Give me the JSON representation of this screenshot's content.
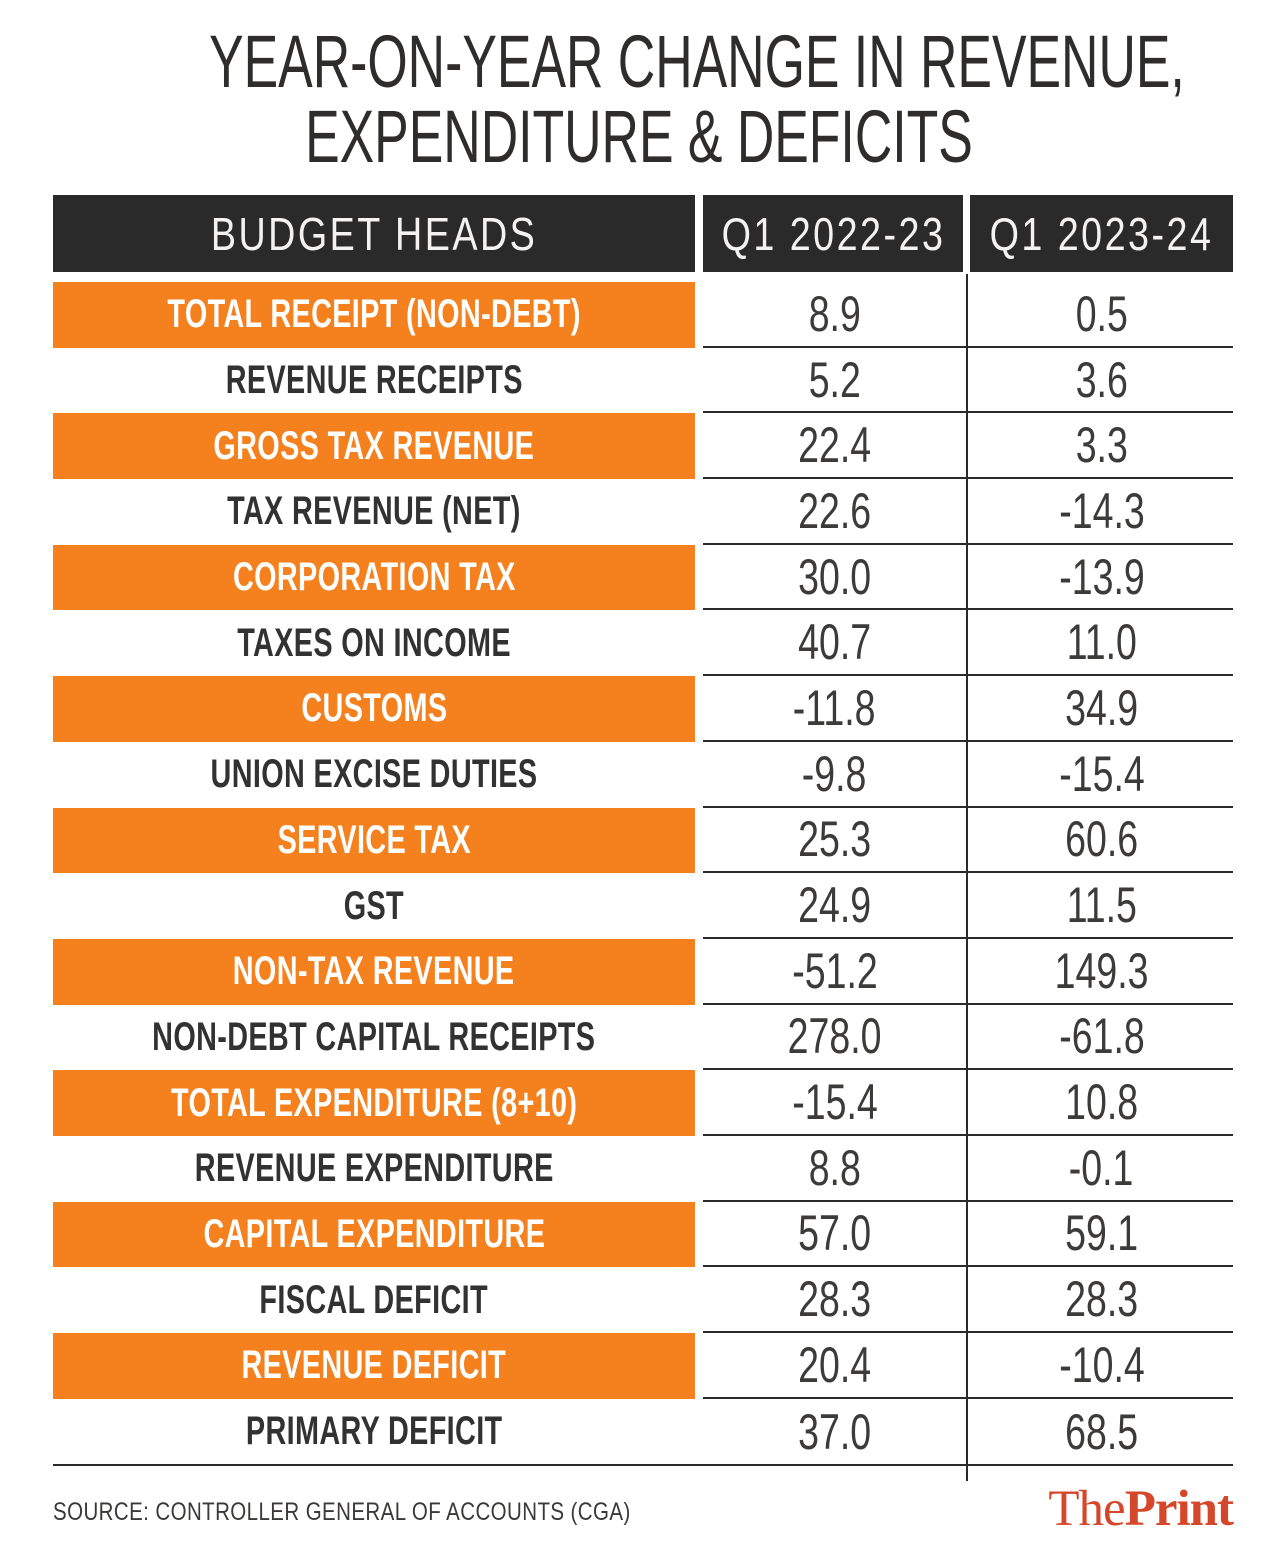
{
  "title": {
    "line1": "YEAR-ON-YEAR CHANGE IN REVENUE,",
    "line2": "EXPENDITURE & DEFICITS"
  },
  "chart_data": {
    "type": "table",
    "title": "YEAR-ON-YEAR CHANGE IN REVENUE, EXPENDITURE & DEFICITS",
    "columns": [
      "BUDGET HEADS",
      "Q1 2022-23",
      "Q1 2023-24"
    ],
    "rows": [
      {
        "label": "TOTAL RECEIPT (NON-DEBT)",
        "values": [
          "8.9",
          "0.5"
        ],
        "highlighted": true
      },
      {
        "label": "REVENUE RECEIPTS",
        "values": [
          "5.2",
          "3.6"
        ],
        "highlighted": false
      },
      {
        "label": "GROSS TAX REVENUE",
        "values": [
          "22.4",
          "3.3"
        ],
        "highlighted": true
      },
      {
        "label": "TAX REVENUE (NET)",
        "values": [
          "22.6",
          "-14.3"
        ],
        "highlighted": false
      },
      {
        "label": "CORPORATION TAX",
        "values": [
          "30.0",
          "-13.9"
        ],
        "highlighted": true
      },
      {
        "label": "TAXES ON INCOME",
        "values": [
          "40.7",
          "11.0"
        ],
        "highlighted": false
      },
      {
        "label": "CUSTOMS",
        "values": [
          "-11.8",
          "34.9"
        ],
        "highlighted": true
      },
      {
        "label": "UNION EXCISE DUTIES",
        "values": [
          "-9.8",
          "-15.4"
        ],
        "highlighted": false
      },
      {
        "label": "SERVICE TAX",
        "values": [
          "25.3",
          "60.6"
        ],
        "highlighted": true
      },
      {
        "label": "GST",
        "values": [
          "24.9",
          "11.5"
        ],
        "highlighted": false
      },
      {
        "label": "NON-TAX REVENUE",
        "values": [
          "-51.2",
          "149.3"
        ],
        "highlighted": true
      },
      {
        "label": "NON-DEBT CAPITAL RECEIPTS",
        "values": [
          "278.0",
          "-61.8"
        ],
        "highlighted": false
      },
      {
        "label": "TOTAL EXPENDITURE (8+10)",
        "values": [
          "-15.4",
          "10.8"
        ],
        "highlighted": true
      },
      {
        "label": "REVENUE EXPENDITURE",
        "values": [
          "8.8",
          "-0.1"
        ],
        "highlighted": false
      },
      {
        "label": "CAPITAL EXPENDITURE",
        "values": [
          "57.0",
          "59.1"
        ],
        "highlighted": true
      },
      {
        "label": "FISCAL DEFICIT",
        "values": [
          "28.3",
          "28.3"
        ],
        "highlighted": false
      },
      {
        "label": "REVENUE DEFICIT",
        "values": [
          "20.4",
          "-10.4"
        ],
        "highlighted": true
      },
      {
        "label": "PRIMARY DEFICIT",
        "values": [
          "37.0",
          "68.5"
        ],
        "highlighted": false
      }
    ]
  },
  "footer": {
    "source": "SOURCE: CONTROLLER GENERAL OF ACCOUNTS (CGA)",
    "brand_the": "The",
    "brand_print": "Print"
  },
  "colors": {
    "accent_orange": "#f5811e",
    "header_dark": "#2b2a2a",
    "text_dark": "#3c3b3a",
    "rule_dark": "#2b2a2a",
    "brand_red": "#d5472a",
    "highlight_row_text": "#ffffff"
  }
}
